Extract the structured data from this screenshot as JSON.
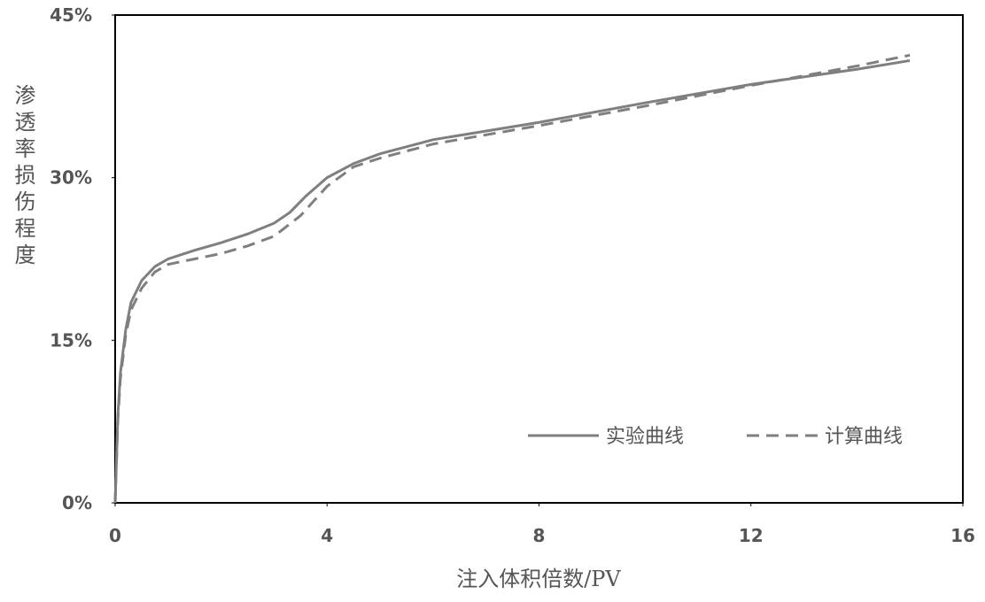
{
  "chart_data": {
    "type": "line",
    "x_label": "注入体积倍数/PV",
    "y_label": "渗透率损伤程度",
    "xlim": [
      0,
      16
    ],
    "xticks": [
      0,
      4,
      8,
      12,
      16
    ],
    "ylim": [
      0,
      45
    ],
    "yticks": [
      {
        "value": 0,
        "label": "0%"
      },
      {
        "value": 15,
        "label": "15%"
      },
      {
        "value": 30,
        "label": "30%"
      },
      {
        "value": 45,
        "label": "45%"
      }
    ],
    "series": [
      {
        "name": "实验曲线",
        "color": "#7f7f7f",
        "dash": false,
        "x": [
          0,
          0.05,
          0.1,
          0.2,
          0.3,
          0.5,
          0.75,
          1,
          1.5,
          2,
          2.5,
          3,
          3.3,
          3.6,
          4,
          4.5,
          5,
          6,
          8,
          10,
          12,
          14,
          15
        ],
        "values": [
          0,
          8,
          12,
          16,
          18.5,
          20.5,
          21.8,
          22.5,
          23.3,
          24,
          24.8,
          25.8,
          26.8,
          28.3,
          30,
          31.3,
          32.2,
          33.5,
          35.1,
          36.9,
          38.6,
          40,
          40.8
        ]
      },
      {
        "name": "计算曲线",
        "color": "#7f7f7f",
        "dash": true,
        "x": [
          0,
          0.05,
          0.1,
          0.2,
          0.3,
          0.5,
          0.75,
          1,
          1.5,
          2,
          2.5,
          3,
          3.5,
          4,
          4.5,
          5,
          6,
          8,
          10,
          12,
          14,
          15
        ],
        "values": [
          0,
          7.5,
          11.5,
          15.5,
          17.8,
          19.8,
          21.3,
          22,
          22.5,
          23,
          23.7,
          24.6,
          26.5,
          29.2,
          31,
          31.8,
          33.1,
          34.8,
          36.6,
          38.5,
          40.3,
          41.3
        ]
      }
    ]
  }
}
